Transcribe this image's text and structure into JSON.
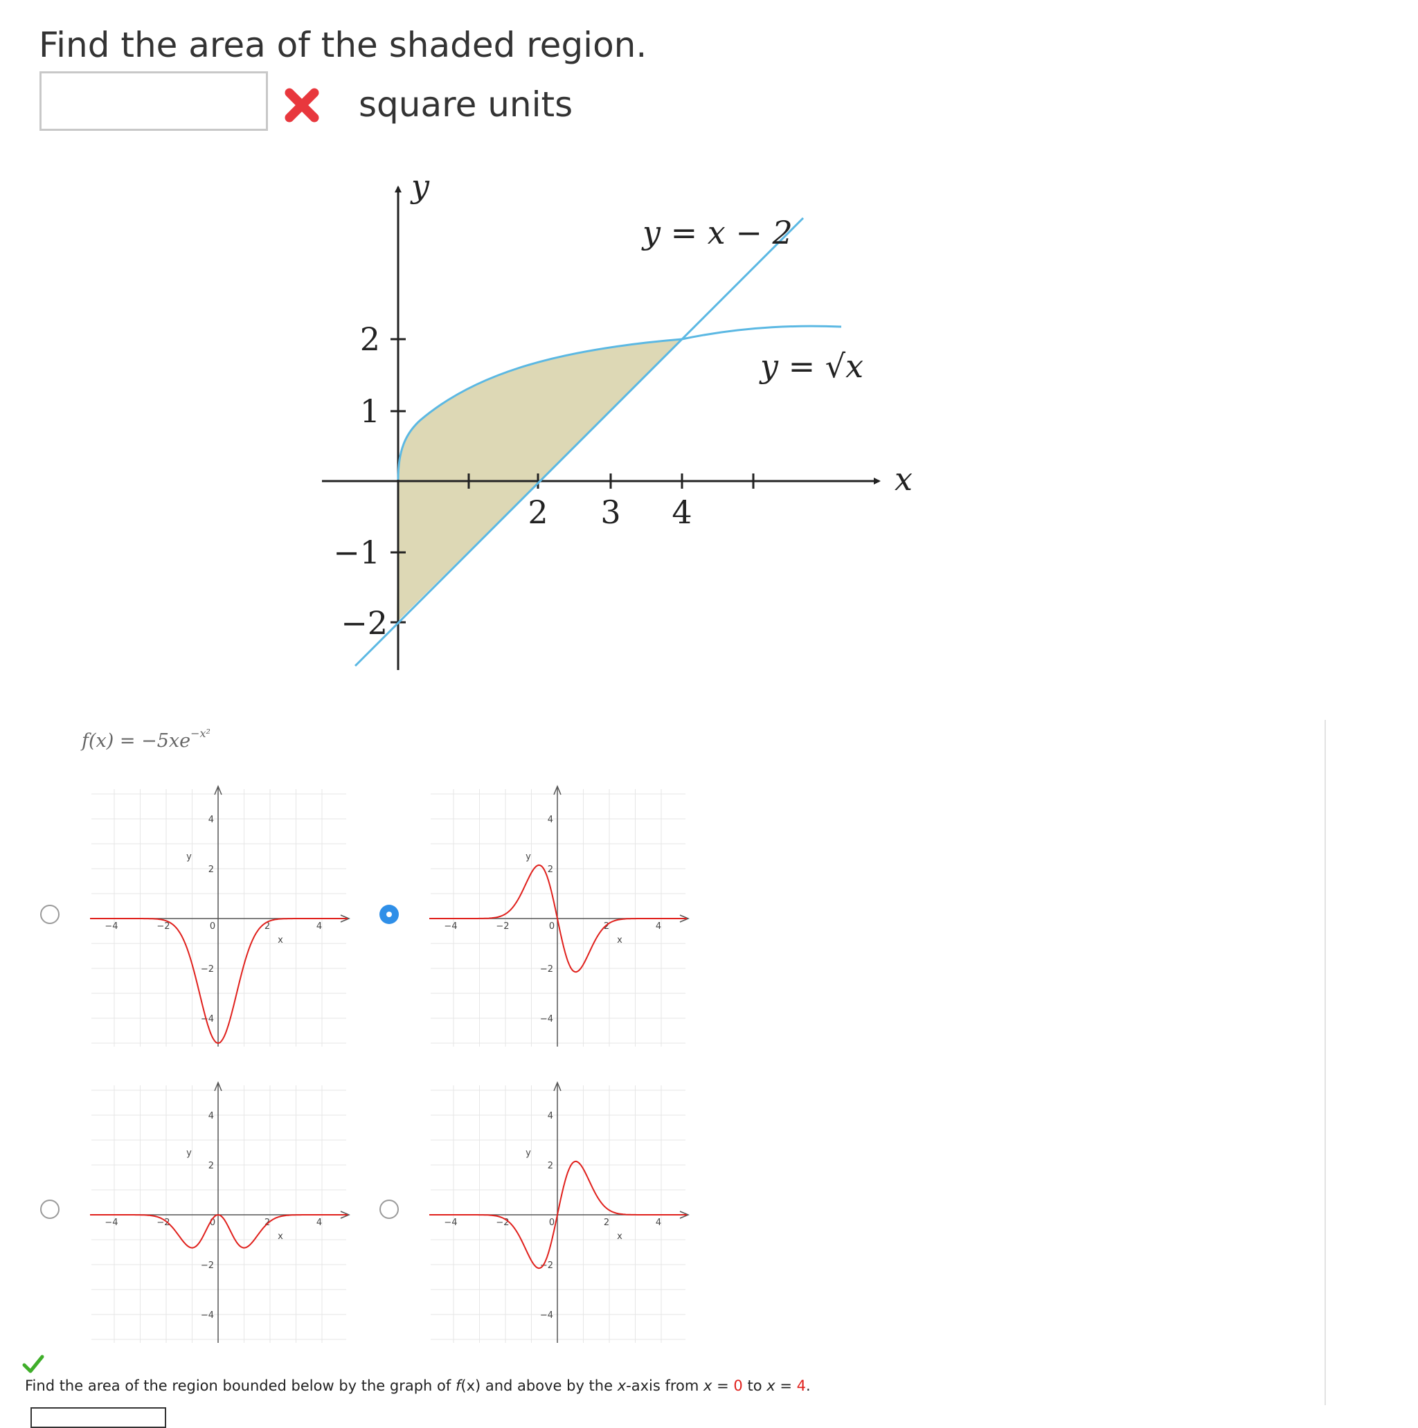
{
  "question1": {
    "title": "Find the area of the shaded region.",
    "answer_value": "",
    "units": "square units",
    "status_icon": "red-x-icon"
  },
  "main_graph": {
    "y_axis_label": "y",
    "x_axis_label": "x",
    "y_tick_labels": [
      "2",
      "1",
      "−1",
      "−2"
    ],
    "x_tick_labels": [
      "2",
      "3",
      "4"
    ],
    "curve_label_line": "y = x − 2",
    "curve_label_sqrt": "y = √x",
    "colors": {
      "curve": "#5bb8e3",
      "shade": "#ddd8b5",
      "axis": "#222222"
    }
  },
  "question2": {
    "function_label": "f(x) = −5xe",
    "function_exponent": "−x²",
    "status_icon": "green-check-icon",
    "prompt_pre": "Find the area of the region bounded below by the graph of ",
    "prompt_f": "f",
    "prompt_fx_rest": "(x) and above by the ",
    "prompt_xaxis": "x",
    "prompt_mid": "-axis from ",
    "prompt_x1": "x",
    "prompt_eq1": " = ",
    "prompt_a": "0",
    "prompt_to": " to ",
    "prompt_x2": "x",
    "prompt_eq2": " = ",
    "prompt_b": "4",
    "prompt_end": ".",
    "answer_value": ""
  },
  "mini_graph": {
    "y_label": "y",
    "x_label": "x",
    "x_ticks": [
      "−4",
      "−2",
      "2",
      "4"
    ],
    "y_ticks": [
      "4",
      "2",
      "−2",
      "−4"
    ],
    "origin": "0",
    "colors": {
      "curve": "#e0201c",
      "axis": "#555555"
    }
  },
  "graph_options": [
    {
      "id": "a",
      "selected": false
    },
    {
      "id": "b",
      "selected": true
    },
    {
      "id": "c",
      "selected": false
    },
    {
      "id": "d",
      "selected": false
    }
  ]
}
